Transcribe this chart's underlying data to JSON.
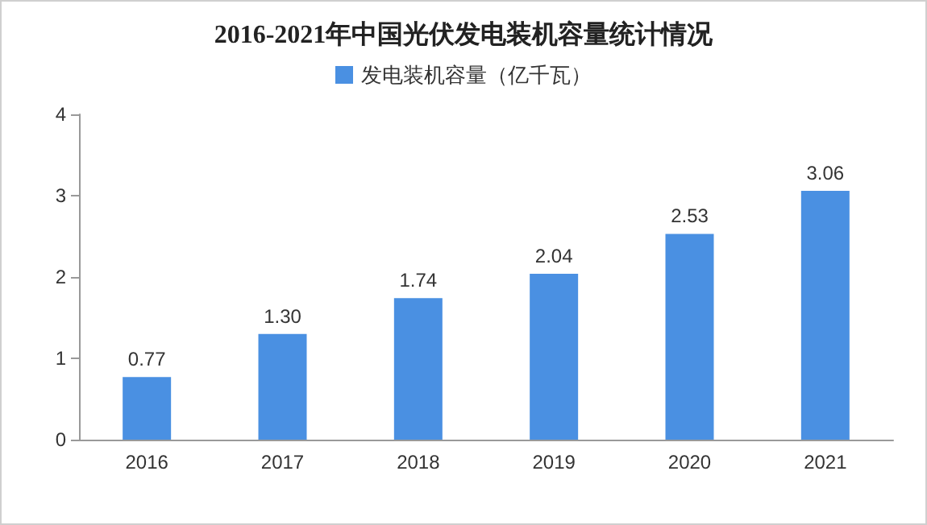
{
  "chart_data": {
    "type": "bar",
    "title": "2016-2021年中国光伏发电装机容量统计情况",
    "categories": [
      "2016",
      "2017",
      "2018",
      "2019",
      "2020",
      "2021"
    ],
    "series": [
      {
        "name": "发电装机容量（亿千瓦）",
        "color": "#4a90e2",
        "values": [
          0.77,
          1.3,
          1.74,
          2.04,
          2.53,
          3.06
        ],
        "value_labels": [
          "0.77",
          "1.30",
          "1.74",
          "2.04",
          "2.53",
          "3.06"
        ]
      }
    ],
    "ylim": [
      0,
      4
    ],
    "yticks": [
      0,
      1,
      2,
      3,
      4
    ],
    "legend": "top",
    "grid": false
  }
}
